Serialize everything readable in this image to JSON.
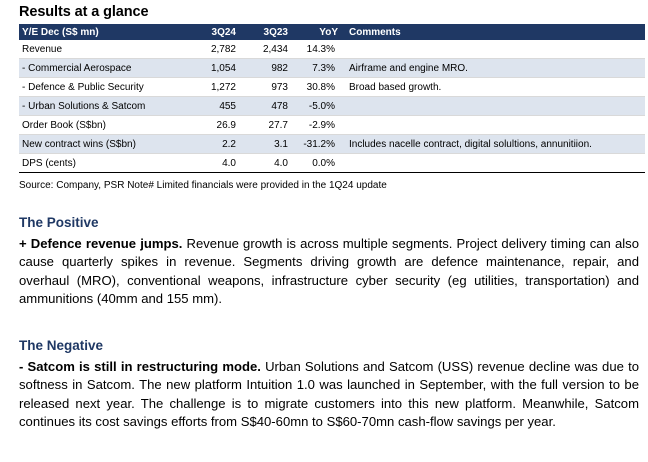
{
  "title": "Results at a glance",
  "table": {
    "headers": [
      "Y/E Dec (S$ mn)",
      "3Q24",
      "3Q23",
      "YoY",
      "Comments"
    ],
    "rows": [
      {
        "label": "Revenue",
        "q324": "2,782",
        "q323": "2,434",
        "yoy": "14.3%",
        "comment": ""
      },
      {
        "label": " - Commercial Aerospace",
        "q324": "1,054",
        "q323": "982",
        "yoy": "7.3%",
        "comment": "Airframe and engine MRO."
      },
      {
        "label": " - Defence & Public Security",
        "q324": "1,272",
        "q323": "973",
        "yoy": "30.8%",
        "comment": "Broad based growth."
      },
      {
        "label": " - Urban Solutions & Satcom",
        "q324": "455",
        "q323": "478",
        "yoy": "-5.0%",
        "comment": ""
      },
      {
        "label": "Order Book (S$bn)",
        "q324": "26.9",
        "q323": "27.7",
        "yoy": "-2.9%",
        "comment": ""
      },
      {
        "label": "New contract wins (S$bn)",
        "q324": "2.2",
        "q323": "3.1",
        "yoy": "-31.2%",
        "comment": "Includes nacelle contract, digital solultions, annunitiion."
      },
      {
        "label": "DPS (cents)",
        "q324": "4.0",
        "q323": "4.0",
        "yoy": "0.0%",
        "comment": ""
      }
    ]
  },
  "source": "Source: Company, PSR  Note# Limited financials were provided in the 1Q24 update",
  "positive": {
    "heading": "The Positive",
    "lead": "+ Defence revenue jumps.",
    "body": " Revenue growth is across multiple segments. Project delivery timing can also cause quarterly spikes in revenue. Segments driving growth are defence maintenance, repair, and overhaul (MRO), conventional weapons, infrastructure cyber security (eg utilities, transportation) and ammunitions (40mm and 155 mm)."
  },
  "negative": {
    "heading": "The Negative",
    "lead": "- Satcom is still in restructuring mode.",
    "body": "  Urban Solutions and Satcom (USS) revenue decline was due to softness in Satcom. The new platform Intuition 1.0 was launched in September, with the full version to be released next year. The challenge is to migrate customers into this new platform. Meanwhile, Satcom continues its cost savings efforts from S$40-60mn to S$60-70mn cash-flow savings per year."
  },
  "colors": {
    "header_bg": "#1f3864",
    "row_shade": "#dde4ee",
    "heading": "#1f3864"
  }
}
